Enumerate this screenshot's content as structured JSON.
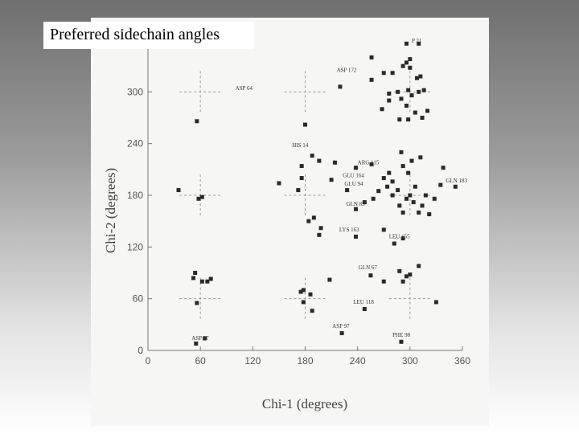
{
  "slide": {
    "title": "Preferred sidechain angles"
  },
  "chart_data": {
    "type": "scatter",
    "xlabel": "Chi-1 (degrees)",
    "ylabel": "Chi-2 (degrees)",
    "xlim": [
      0,
      360
    ],
    "ylim": [
      0,
      360
    ],
    "xticks": [
      "0",
      "60",
      "120",
      "180",
      "240",
      "300",
      "360"
    ],
    "yticks": [
      "0",
      "60",
      "120",
      "180",
      "240",
      "300"
    ],
    "grid": false,
    "preferred_angle_crosshairs": [
      [
        60,
        60
      ],
      [
        60,
        180
      ],
      [
        60,
        300
      ],
      [
        180,
        60
      ],
      [
        180,
        180
      ],
      [
        180,
        300
      ],
      [
        300,
        60
      ],
      [
        300,
        180
      ],
      [
        300,
        300
      ]
    ],
    "points": [
      [
        55,
        8
      ],
      [
        65,
        14
      ],
      [
        222,
        20
      ],
      [
        290,
        10
      ],
      [
        248,
        48
      ],
      [
        330,
        56
      ],
      [
        56,
        55
      ],
      [
        178,
        56
      ],
      [
        188,
        46
      ],
      [
        175,
        68
      ],
      [
        178,
        70
      ],
      [
        186,
        65
      ],
      [
        208,
        82
      ],
      [
        52,
        84
      ],
      [
        54,
        90
      ],
      [
        62,
        80
      ],
      [
        68,
        80
      ],
      [
        72,
        83
      ],
      [
        255,
        87
      ],
      [
        270,
        80
      ],
      [
        288,
        92
      ],
      [
        292,
        80
      ],
      [
        296,
        86
      ],
      [
        300,
        88
      ],
      [
        310,
        98
      ],
      [
        196,
        134
      ],
      [
        238,
        132
      ],
      [
        282,
        124
      ],
      [
        292,
        130
      ],
      [
        270,
        140
      ],
      [
        35,
        186
      ],
      [
        58,
        176
      ],
      [
        62,
        178
      ],
      [
        150,
        194
      ],
      [
        172,
        186
      ],
      [
        176,
        200
      ],
      [
        184,
        150
      ],
      [
        190,
        154
      ],
      [
        198,
        142
      ],
      [
        210,
        198
      ],
      [
        228,
        186
      ],
      [
        238,
        164
      ],
      [
        248,
        172
      ],
      [
        258,
        176
      ],
      [
        264,
        185
      ],
      [
        270,
        200
      ],
      [
        274,
        190
      ],
      [
        280,
        180
      ],
      [
        286,
        186
      ],
      [
        288,
        168
      ],
      [
        292,
        160
      ],
      [
        296,
        176
      ],
      [
        300,
        180
      ],
      [
        304,
        172
      ],
      [
        306,
        190
      ],
      [
        310,
        160
      ],
      [
        314,
        168
      ],
      [
        318,
        180
      ],
      [
        322,
        158
      ],
      [
        328,
        176
      ],
      [
        335,
        192
      ],
      [
        352,
        190
      ],
      [
        280,
        196
      ],
      [
        276,
        206
      ],
      [
        292,
        214
      ],
      [
        298,
        206
      ],
      [
        302,
        220
      ],
      [
        312,
        224
      ],
      [
        176,
        214
      ],
      [
        188,
        226
      ],
      [
        196,
        220
      ],
      [
        214,
        218
      ],
      [
        238,
        212
      ],
      [
        256,
        216
      ],
      [
        290,
        230
      ],
      [
        338,
        212
      ],
      [
        56,
        266
      ],
      [
        180,
        262
      ],
      [
        268,
        280
      ],
      [
        276,
        298
      ],
      [
        286,
        300
      ],
      [
        290,
        292
      ],
      [
        298,
        302
      ],
      [
        302,
        296
      ],
      [
        310,
        300
      ],
      [
        316,
        302
      ],
      [
        288,
        268
      ],
      [
        298,
        268
      ],
      [
        306,
        276
      ],
      [
        314,
        270
      ],
      [
        320,
        278
      ],
      [
        276,
        290
      ],
      [
        296,
        284
      ],
      [
        220,
        306
      ],
      [
        256,
        314
      ],
      [
        270,
        322
      ],
      [
        280,
        322
      ],
      [
        292,
        330
      ],
      [
        300,
        328
      ],
      [
        308,
        316
      ],
      [
        312,
        318
      ],
      [
        296,
        334
      ],
      [
        300,
        338
      ],
      [
        256,
        340
      ],
      [
        310,
        356
      ],
      [
        296,
        356
      ]
    ],
    "annotations": [
      {
        "text": "ASP 87",
        "x": 50,
        "y": 12
      },
      {
        "text": "ASP 97",
        "x": 211,
        "y": 26
      },
      {
        "text": "PHE 98",
        "x": 280,
        "y": 16
      },
      {
        "text": "LEU 118",
        "x": 235,
        "y": 54
      },
      {
        "text": "GLN 67",
        "x": 241,
        "y": 94
      },
      {
        "text": "LYS 163",
        "x": 219,
        "y": 138
      },
      {
        "text": "LEU 155",
        "x": 276,
        "y": 130
      },
      {
        "text": "GLN 83",
        "x": 227,
        "y": 168
      },
      {
        "text": "GLU 94",
        "x": 225,
        "y": 191
      },
      {
        "text": "GLU 164",
        "x": 223,
        "y": 201
      },
      {
        "text": "ARG 115",
        "x": 240,
        "y": 216
      },
      {
        "text": "GLN 183",
        "x": 341,
        "y": 195
      },
      {
        "text": "HIS 14",
        "x": 165,
        "y": 236
      },
      {
        "text": "ASP 64",
        "x": 100,
        "y": 302
      },
      {
        "text": "ASP 172",
        "x": 216,
        "y": 323
      },
      {
        "text": "P 21",
        "x": 302,
        "y": 357
      }
    ]
  }
}
